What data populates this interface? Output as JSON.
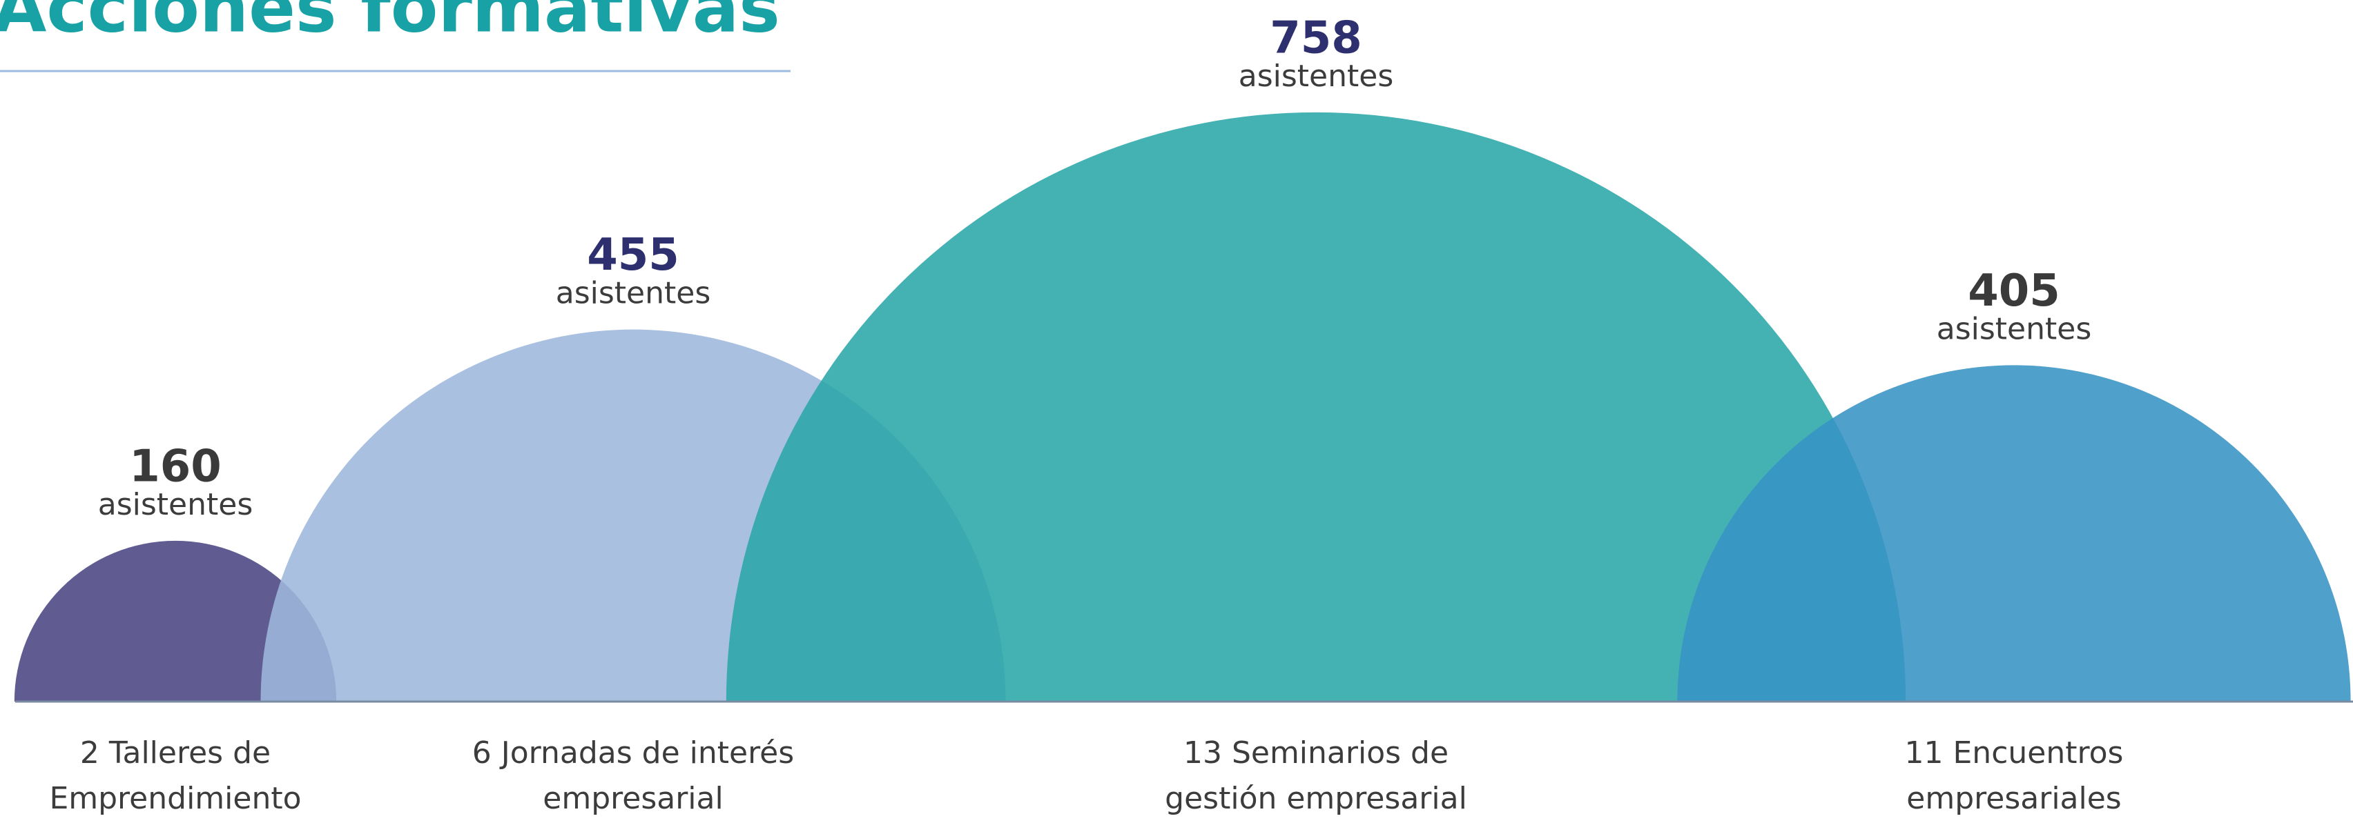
{
  "chart_data": {
    "type": "semicircle",
    "title": "Acciones formativas",
    "unit": "asistentes",
    "categories": [
      [
        "2 Talleres de",
        "Emprendimiento"
      ],
      [
        "6 Jornadas de interés",
        "empresarial"
      ],
      [
        "13 Seminarios de",
        "gestión empresarial"
      ],
      [
        "11 Encuentros",
        "empresariales"
      ]
    ],
    "values": [
      160,
      455,
      758,
      405
    ],
    "colors": [
      "#4a4682",
      "#9db7dc",
      "#2aa6a9",
      "#3893c5"
    ],
    "label_colors": [
      "#3a3a3a",
      "#2e2f6e",
      "#2e2f6e",
      "#3a3a3a"
    ]
  }
}
